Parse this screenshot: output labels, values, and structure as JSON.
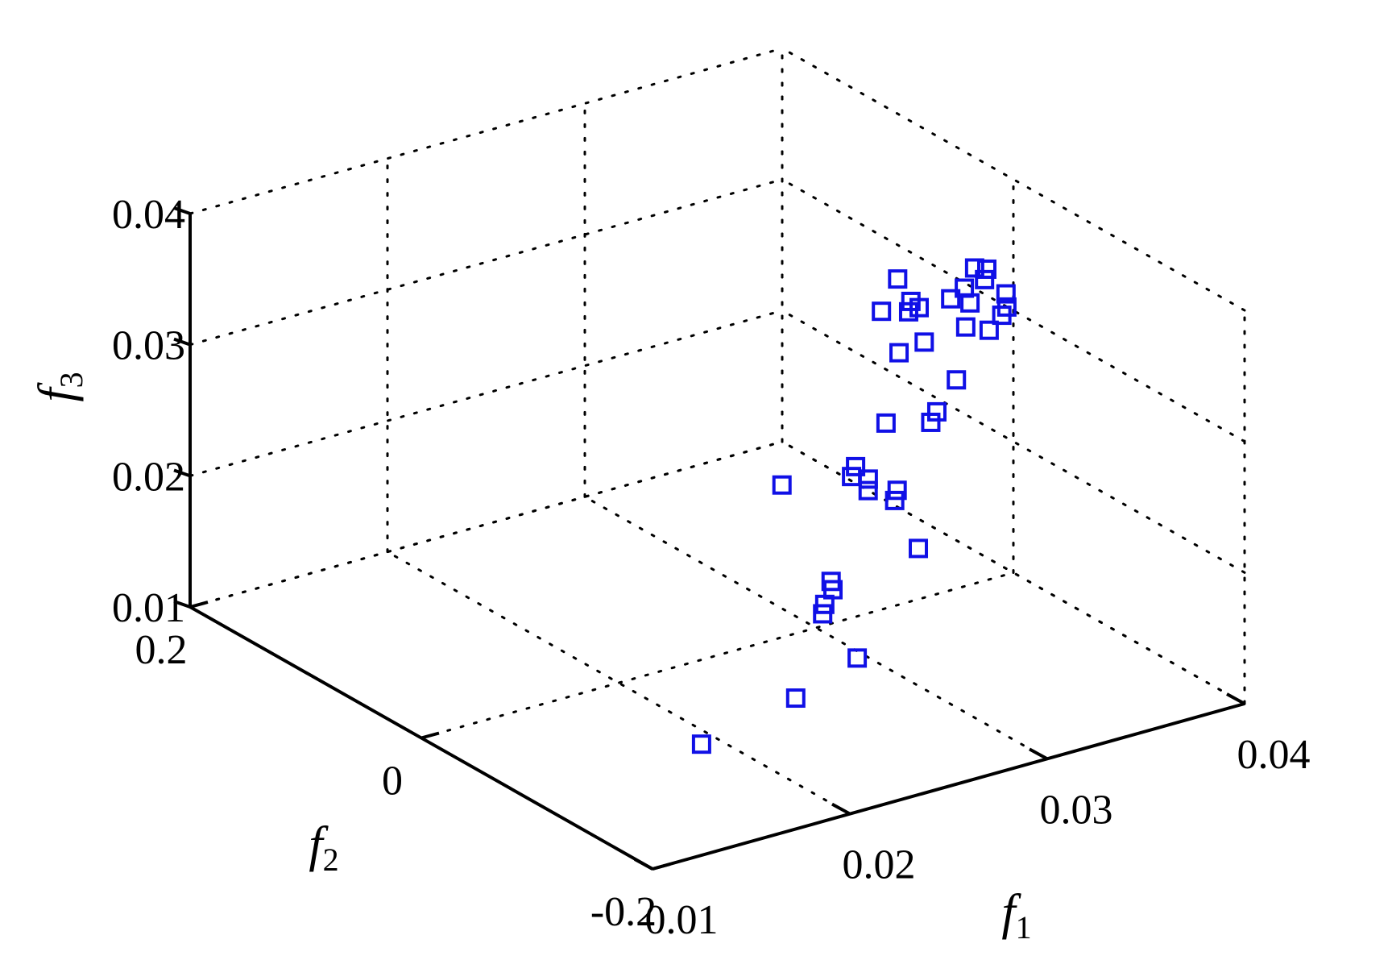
{
  "chart_data": {
    "type": "scatter",
    "xlabel": "f1",
    "ylabel": "f2",
    "zlabel": "f3",
    "xlim": [
      0.01,
      0.04
    ],
    "ylim": [
      -0.2,
      0.2
    ],
    "zlim": [
      0.01,
      0.04
    ],
    "x_ticks": [
      "0.01",
      "0.02",
      "0.03",
      "0.04"
    ],
    "y_ticks": [
      "-0.2",
      "0",
      "0.2"
    ],
    "z_ticks": [
      "0.01",
      "0.02",
      "0.03",
      "0.04"
    ],
    "grid": true,
    "marker": "square",
    "marker_color": "#1010e6",
    "points": [
      {
        "x": 0.016,
        "y": -0.14,
        "z": 0.014
      },
      {
        "x": 0.0196,
        "y": -0.16,
        "z": 0.017
      },
      {
        "x": 0.0233,
        "y": -0.15,
        "z": 0.018
      },
      {
        "x": 0.0236,
        "y": -0.115,
        "z": 0.0195
      },
      {
        "x": 0.024,
        "y": -0.11,
        "z": 0.0198
      },
      {
        "x": 0.025,
        "y": -0.1,
        "z": 0.02
      },
      {
        "x": 0.0252,
        "y": -0.095,
        "z": 0.0203
      },
      {
        "x": 0.0288,
        "y": -0.109,
        "z": 0.022
      },
      {
        "x": 0.0264,
        "y": -0.032,
        "z": 0.024
      },
      {
        "x": 0.0277,
        "y": -0.07,
        "z": 0.026
      },
      {
        "x": 0.0286,
        "y": -0.069,
        "z": 0.0245
      },
      {
        "x": 0.0293,
        "y": -0.08,
        "z": 0.024
      },
      {
        "x": 0.0289,
        "y": -0.064,
        "z": 0.025
      },
      {
        "x": 0.0296,
        "y": -0.077,
        "z": 0.0245
      },
      {
        "x": 0.0289,
        "y": -0.053,
        "z": 0.0254
      },
      {
        "x": 0.0305,
        "y": -0.052,
        "z": 0.028
      },
      {
        "x": 0.0323,
        "y": -0.06,
        "z": 0.0277
      },
      {
        "x": 0.0329,
        "y": -0.055,
        "z": 0.028
      },
      {
        "x": 0.0328,
        "y": -0.024,
        "z": 0.031
      },
      {
        "x": 0.0343,
        "y": -0.048,
        "z": 0.0295
      },
      {
        "x": 0.0339,
        "y": -0.027,
        "z": 0.0315
      },
      {
        "x": 0.0339,
        "y": 0.01,
        "z": 0.032
      },
      {
        "x": 0.0344,
        "y": -0.005,
        "z": 0.0325
      },
      {
        "x": 0.0351,
        "y": 0.005,
        "z": 0.0325
      },
      {
        "x": 0.0354,
        "y": 0.003,
        "z": 0.032
      },
      {
        "x": 0.0356,
        "y": 0.025,
        "z": 0.033
      },
      {
        "x": 0.037,
        "y": -0.01,
        "z": 0.0305
      },
      {
        "x": 0.0376,
        "y": -0.02,
        "z": 0.0305
      },
      {
        "x": 0.037,
        "y": 0.003,
        "z": 0.032
      },
      {
        "x": 0.0378,
        "y": 0.0,
        "z": 0.0315
      },
      {
        "x": 0.0383,
        "y": -0.019,
        "z": 0.0313
      },
      {
        "x": 0.0381,
        "y": 0.01,
        "z": 0.032
      },
      {
        "x": 0.0392,
        "y": -0.008,
        "z": 0.031
      },
      {
        "x": 0.0393,
        "y": 0.013,
        "z": 0.032
      },
      {
        "x": 0.0398,
        "y": 0.003,
        "z": 0.0312
      },
      {
        "x": 0.0395,
        "y": 0.025,
        "z": 0.0322
      },
      {
        "x": 0.04,
        "y": 0.023,
        "z": 0.032
      }
    ]
  }
}
